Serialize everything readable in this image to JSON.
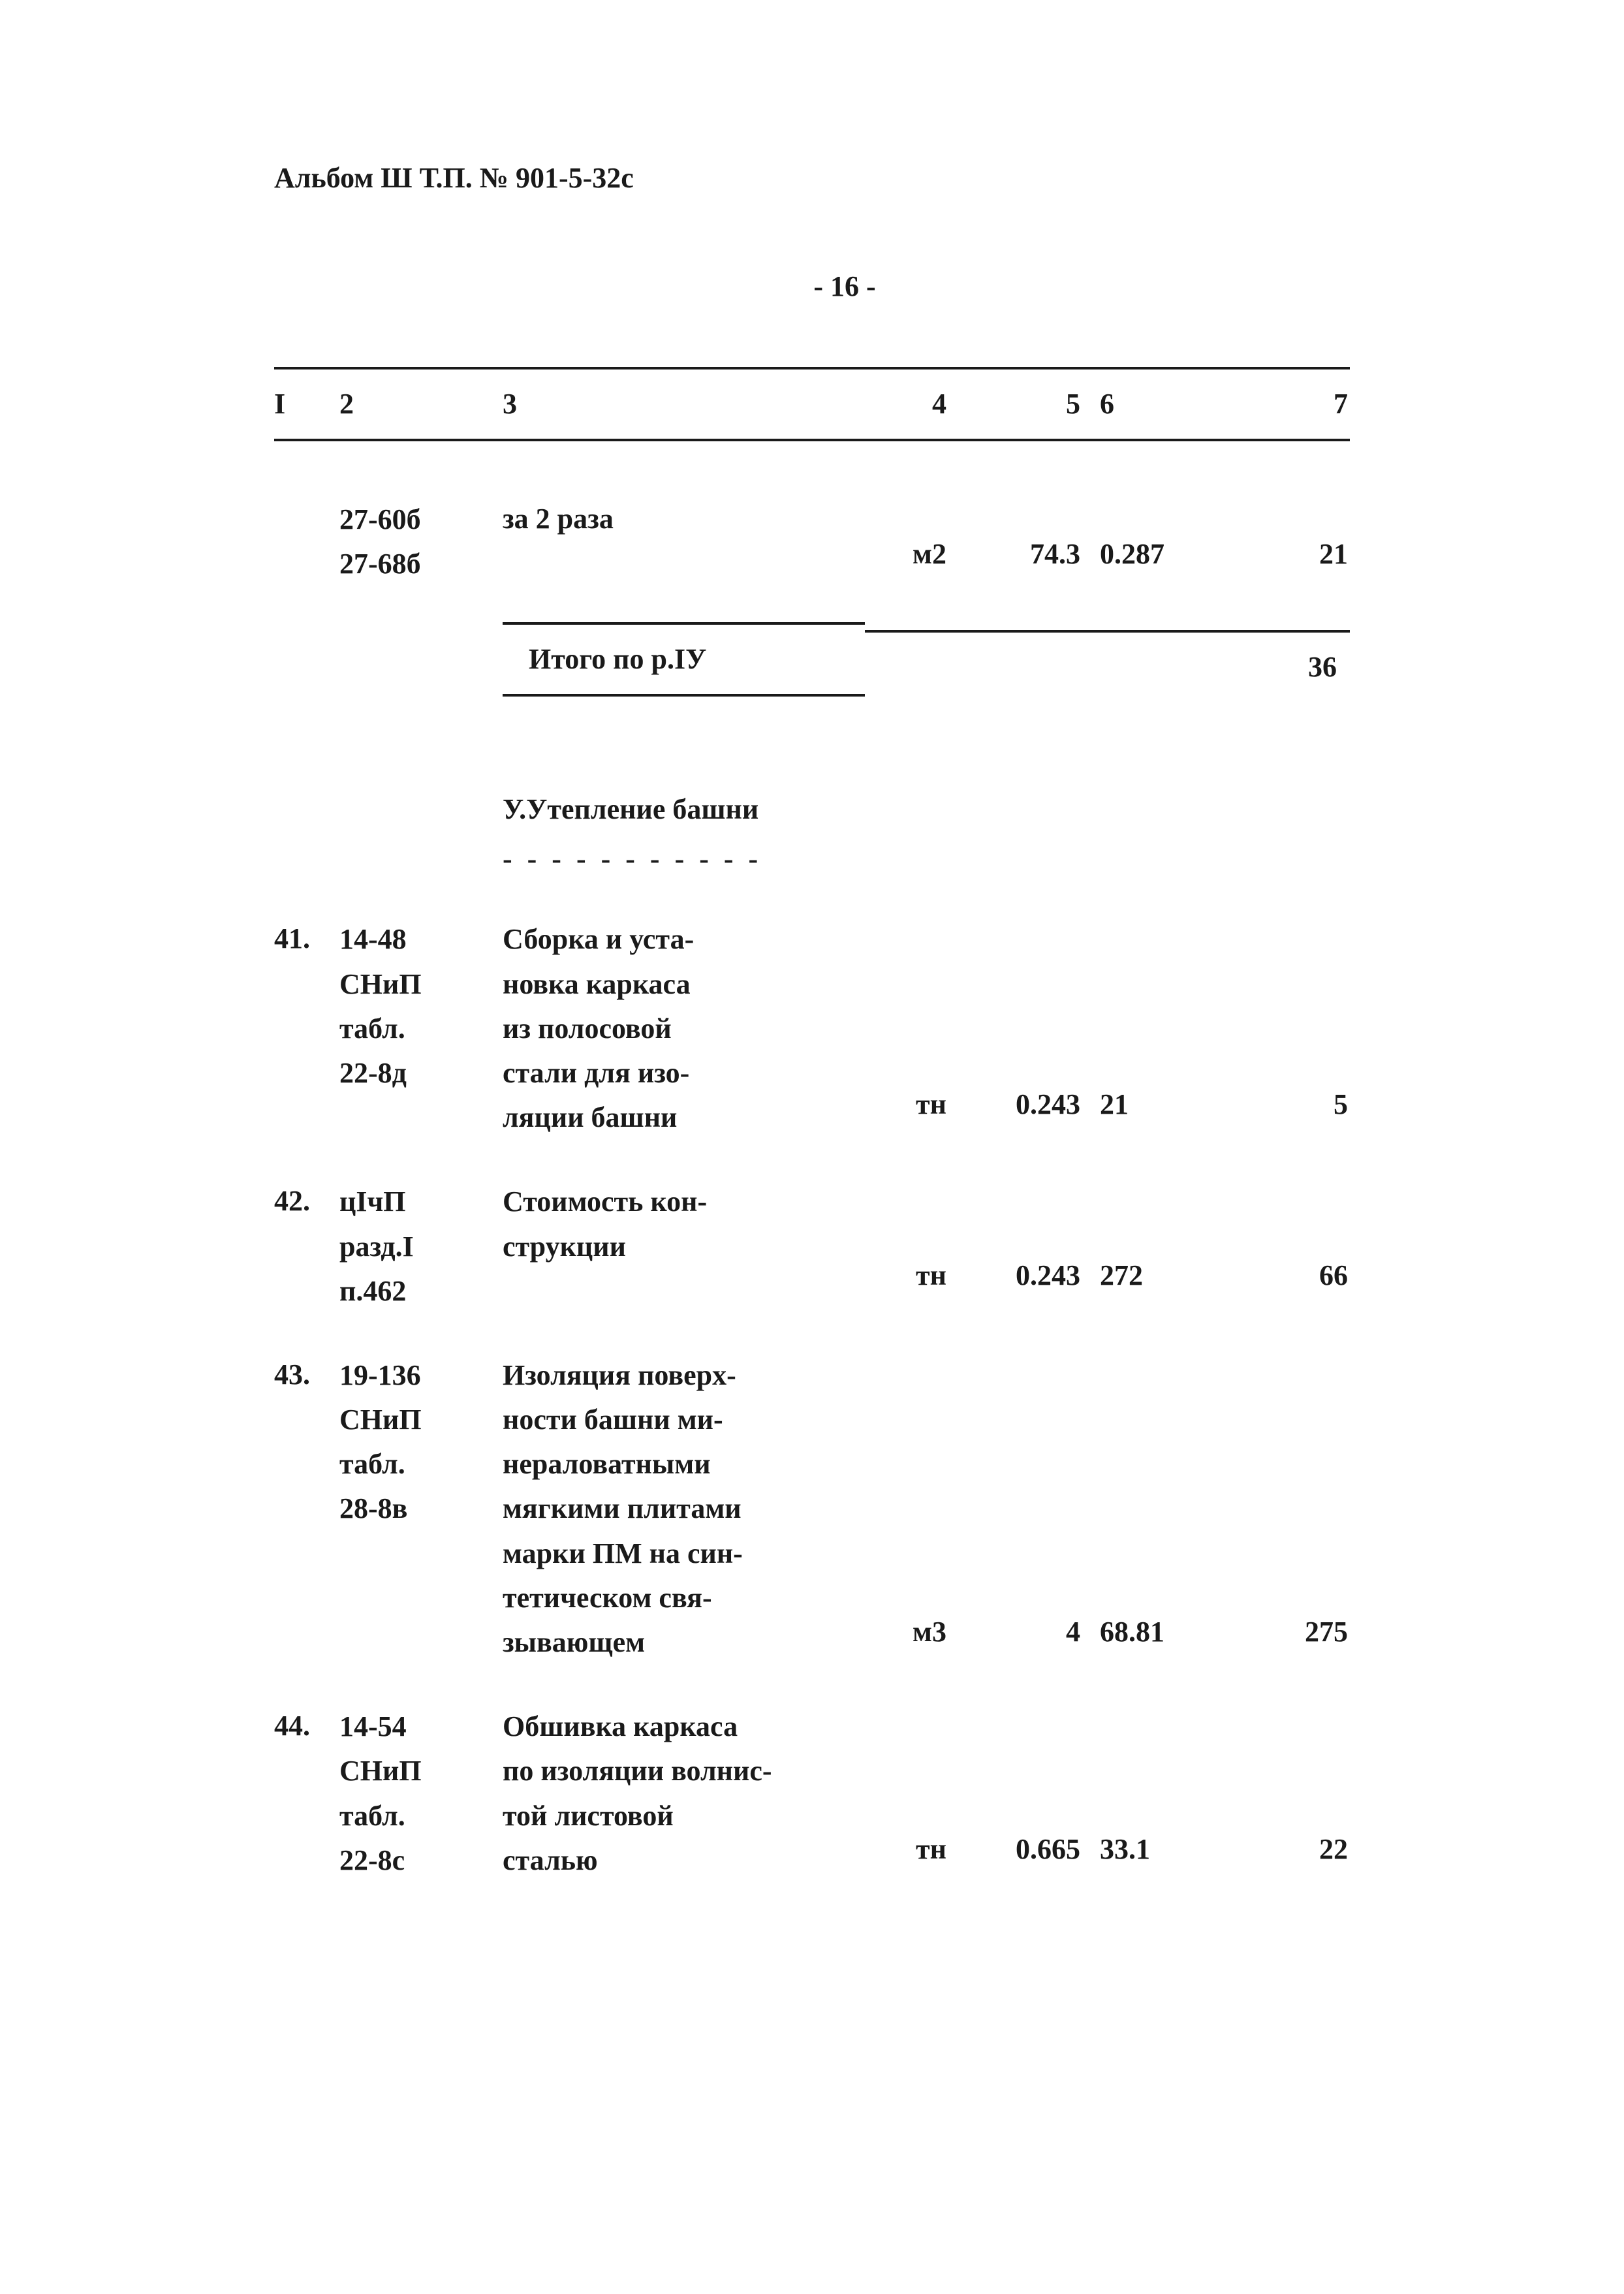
{
  "header": "Альбом Ш Т.П. № 901-5-32с",
  "page_number": "- 16 -",
  "columns": [
    "I",
    "2",
    "3",
    "4",
    "5",
    "6",
    "7"
  ],
  "row_continuation": {
    "col2_a": "27-60б",
    "col2_b": "27-68б",
    "col3": "за 2 раза",
    "col4": "м2",
    "col5": "74.3",
    "col6": "0.287",
    "col7": "21"
  },
  "subtotal": {
    "label": "Итого по р.IУ",
    "value": "36"
  },
  "section_title": "У.Утепление башни",
  "section_dashes": "- - - - - - - - - - -",
  "row41": {
    "num": "41.",
    "ref": "14-48\nСНиП\nтабл.\n22-8д",
    "desc": "Сборка и уста-\nновка каркаса\nиз полосовой\nстали для изо-\nляции башни",
    "unit": "тн",
    "qty": "0.243",
    "rate": "21",
    "total": "5"
  },
  "row42": {
    "num": "42.",
    "ref": "цIчП\nразд.I\nп.462",
    "desc": "Стоимость кон-\nструкции",
    "unit": "тн",
    "qty": "0.243",
    "rate": "272",
    "total": "66"
  },
  "row43": {
    "num": "43.",
    "ref": "19-136\nСНиП\nтабл.\n28-8в",
    "desc": "Изоляция поверх-\nности башни ми-\nнераловатными\nмягкими плитами\nмарки ПМ на син-\nтетическом свя-\nзывающем",
    "unit": "м3",
    "qty": "4",
    "rate": "68.81",
    "total": "275"
  },
  "row44": {
    "num": "44.",
    "ref": "14-54\nСНиП\nтабл.\n22-8с",
    "desc": "Обшивка каркаса\nпо изоляции волнис-\nтой листовой\nсталью",
    "unit": "тн",
    "qty": "0.665",
    "rate": "33.1",
    "total": "22"
  }
}
